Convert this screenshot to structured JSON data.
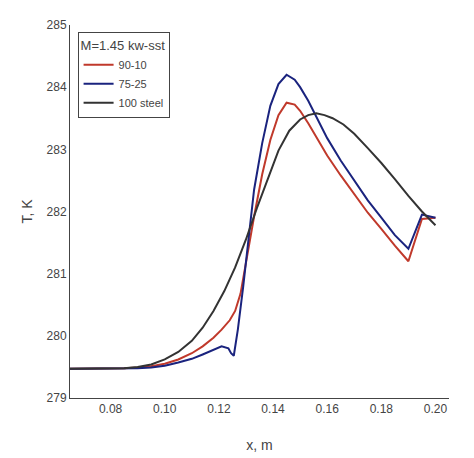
{
  "chart_data": {
    "type": "line",
    "xlabel": "x, m",
    "ylabel": "T, K",
    "xlim": [
      0.065,
      0.205
    ],
    "ylim": [
      279,
      285
    ],
    "xticks": [
      0.08,
      {
        "value": 0.1,
        "label": "0.10"
      },
      0.12,
      0.14,
      0.16,
      0.18,
      {
        "value": 0.2,
        "label": "0.20"
      }
    ],
    "yticks": [
      279,
      280,
      281,
      282,
      283,
      284,
      285
    ],
    "grid": false,
    "legend": "upper left",
    "legend_title": "M=1.45 kw-sst",
    "series": [
      {
        "name": "90-10",
        "color": "#c0392b",
        "x": [
          0.065,
          0.07,
          0.075,
          0.08,
          0.085,
          0.09,
          0.095,
          0.1,
          0.105,
          0.11,
          0.114,
          0.118,
          0.121,
          0.124,
          0.126,
          0.128,
          0.13,
          0.133,
          0.136,
          0.139,
          0.142,
          0.145,
          0.148,
          0.15,
          0.153,
          0.156,
          0.16,
          0.165,
          0.17,
          0.175,
          0.18,
          0.185,
          0.19,
          0.195,
          0.2
        ],
        "values": [
          279.47,
          279.47,
          279.47,
          279.47,
          279.48,
          279.49,
          279.51,
          279.55,
          279.62,
          279.72,
          279.83,
          279.97,
          280.1,
          280.25,
          280.4,
          280.68,
          281.2,
          281.92,
          282.6,
          283.15,
          283.55,
          283.75,
          283.72,
          283.62,
          283.42,
          283.2,
          282.9,
          282.58,
          282.28,
          281.98,
          281.72,
          281.45,
          281.2,
          281.88,
          281.9
        ]
      },
      {
        "name": "75-25",
        "color": "#1a237e",
        "x": [
          0.065,
          0.07,
          0.075,
          0.08,
          0.085,
          0.09,
          0.095,
          0.1,
          0.105,
          0.11,
          0.114,
          0.118,
          0.121,
          0.1235,
          0.1245,
          0.1255,
          0.127,
          0.129,
          0.131,
          0.133,
          0.136,
          0.139,
          0.142,
          0.145,
          0.148,
          0.15,
          0.153,
          0.156,
          0.16,
          0.165,
          0.17,
          0.175,
          0.18,
          0.185,
          0.19,
          0.195,
          0.2
        ],
        "values": [
          279.47,
          279.47,
          279.47,
          279.47,
          279.48,
          279.48,
          279.49,
          279.52,
          279.57,
          279.63,
          279.7,
          279.78,
          279.83,
          279.8,
          279.72,
          279.68,
          280.1,
          280.8,
          281.6,
          282.35,
          283.1,
          283.7,
          284.05,
          284.2,
          284.12,
          284.0,
          283.78,
          283.52,
          283.18,
          282.82,
          282.5,
          282.18,
          281.9,
          281.62,
          281.4,
          281.95,
          281.9
        ]
      },
      {
        "name": "100 steel",
        "color": "#333333",
        "x": [
          0.065,
          0.07,
          0.075,
          0.08,
          0.085,
          0.09,
          0.095,
          0.1,
          0.105,
          0.11,
          0.114,
          0.118,
          0.122,
          0.126,
          0.13,
          0.134,
          0.138,
          0.142,
          0.146,
          0.15,
          0.153,
          0.156,
          0.159,
          0.162,
          0.166,
          0.17,
          0.175,
          0.18,
          0.185,
          0.19,
          0.195,
          0.2
        ],
        "values": [
          279.47,
          279.47,
          279.47,
          279.47,
          279.48,
          279.5,
          279.54,
          279.62,
          279.74,
          279.92,
          280.13,
          280.4,
          280.72,
          281.1,
          281.55,
          282.05,
          282.52,
          282.98,
          283.3,
          283.48,
          283.55,
          283.58,
          283.55,
          283.5,
          283.4,
          283.25,
          283.02,
          282.78,
          282.52,
          282.25,
          282.0,
          281.78
        ]
      }
    ]
  }
}
